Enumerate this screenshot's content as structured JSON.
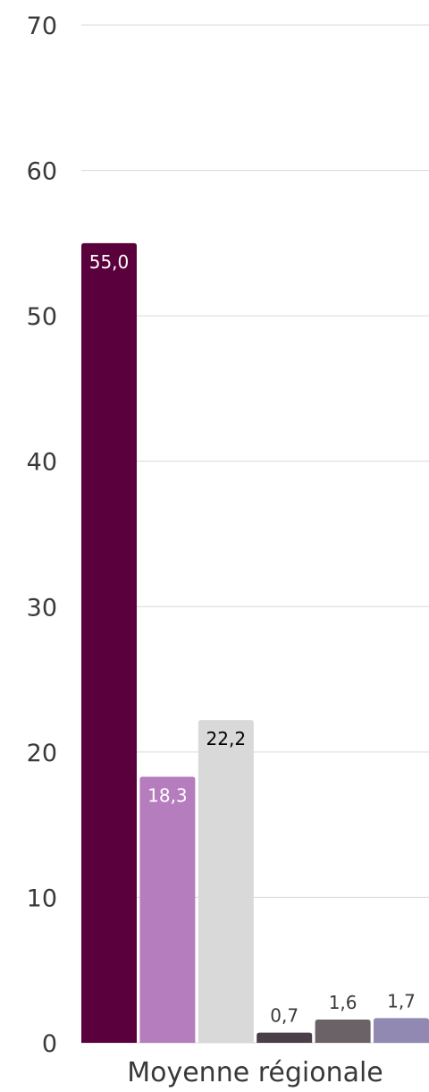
{
  "chart_data": {
    "type": "bar",
    "title": "",
    "xlabel": "",
    "ylabel": "",
    "categories": [
      "Moyenne régionale"
    ],
    "ylim": [
      0,
      70
    ],
    "yticks": [
      "0",
      "10",
      "20",
      "30",
      "40",
      "50",
      "60",
      "70"
    ],
    "grid": true,
    "legend": "none",
    "series": [
      {
        "value": 55.0,
        "label": "55,0",
        "color": "#5a003c",
        "label_color": "#ffffff",
        "label_position": "inside"
      },
      {
        "value": 18.3,
        "label": "18,3",
        "color": "#b57dbd",
        "label_color": "#ffffff",
        "label_position": "inside"
      },
      {
        "value": 22.2,
        "label": "22,2",
        "color": "#d9d9d9",
        "label_color": "#000000",
        "label_position": "inside"
      },
      {
        "value": 0.7,
        "label": "0,7",
        "color": "#4a3f49",
        "label_color": "#3b3838",
        "label_position": "above"
      },
      {
        "value": 1.6,
        "label": "1,6",
        "color": "#6b6268",
        "label_color": "#3b3838",
        "label_position": "above"
      },
      {
        "value": 1.7,
        "label": "1,7",
        "color": "#9189b2",
        "label_color": "#3b3838",
        "label_position": "above"
      }
    ]
  }
}
